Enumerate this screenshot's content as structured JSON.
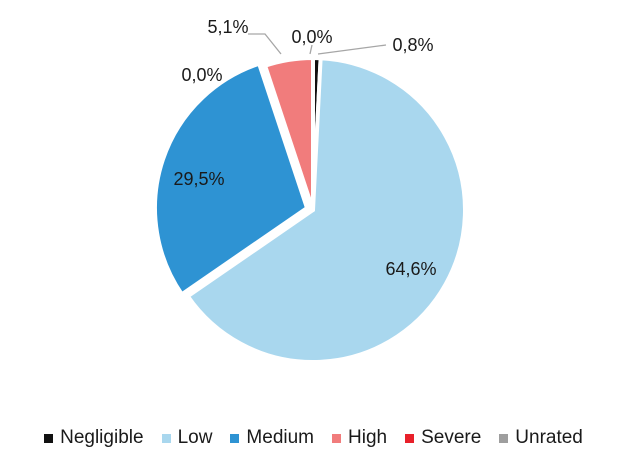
{
  "chart_data": {
    "type": "pie",
    "title": "",
    "slices": [
      {
        "name": "Negligible",
        "value": 0.8,
        "label": "0,8%",
        "color": "#111111"
      },
      {
        "name": "Low",
        "value": 64.6,
        "label": "64,6%",
        "color": "#a9d7ee"
      },
      {
        "name": "Medium",
        "value": 29.5,
        "label": "29,5%",
        "color": "#2e93d3"
      },
      {
        "name": "Severe",
        "value": 0.0,
        "label": "0,0%",
        "color": "#e8202a"
      },
      {
        "name": "High",
        "value": 5.1,
        "label": "5,1%",
        "color": "#f17c7c"
      },
      {
        "name": "Unrated",
        "value": 0.0,
        "label": "0,0%",
        "color": "#9e9e9e"
      }
    ],
    "legend": {
      "position": "bottom",
      "items": [
        {
          "name": "Negligible",
          "color": "#111111"
        },
        {
          "name": "Low",
          "color": "#a9d7ee"
        },
        {
          "name": "Medium",
          "color": "#2e93d3"
        },
        {
          "name": "High",
          "color": "#f17c7c"
        },
        {
          "name": "Severe",
          "color": "#e8202a"
        },
        {
          "name": "Unrated",
          "color": "#9e9e9e"
        }
      ]
    }
  }
}
